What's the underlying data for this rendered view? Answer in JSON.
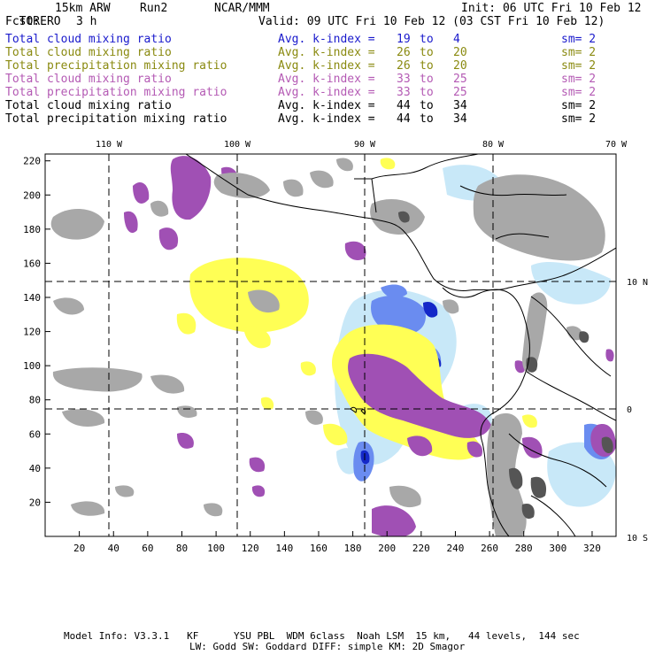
{
  "header": {
    "model": "TORERO",
    "resolution": "15km ARW",
    "run": "Run2",
    "org": "NCAR/MMM",
    "init": "Init: 06 UTC Fri 10 Feb 12",
    "fcst_label": "Fcst:",
    "fcst_value": "3 h",
    "valid": "Valid: 09 UTC Fri 10 Feb 12 (03 CST Fri 10 Feb 12)"
  },
  "legend": [
    {
      "field": "Total cloud mixing ratio",
      "kindex": "Avg. k-index =",
      "from": "19",
      "to_word": "to",
      "to": "4",
      "sm": "sm= 2",
      "color": "#1a1acc"
    },
    {
      "field": "Total cloud mixing ratio",
      "kindex": "Avg. k-index =",
      "from": "26",
      "to_word": "to",
      "to": "20",
      "sm": "sm= 2",
      "color": "#8a8a10"
    },
    {
      "field": "Total precipitation mixing ratio",
      "kindex": "Avg. k-index =",
      "from": "26",
      "to_word": "to",
      "to": "20",
      "sm": "sm= 2",
      "color": "#8a8a10"
    },
    {
      "field": "Total cloud mixing ratio",
      "kindex": "Avg. k-index =",
      "from": "33",
      "to_word": "to",
      "to": "25",
      "sm": "sm= 2",
      "color": "#b45ab4"
    },
    {
      "field": "Total precipitation mixing ratio",
      "kindex": "Avg. k-index =",
      "from": "33",
      "to_word": "to",
      "to": "25",
      "sm": "sm= 2",
      "color": "#b45ab4"
    },
    {
      "field": "Total cloud mixing ratio",
      "kindex": "Avg. k-index =",
      "from": "44",
      "to_word": "to",
      "to": "34",
      "sm": "sm= 2",
      "color": "#000000"
    },
    {
      "field": "Total precipitation mixing ratio",
      "kindex": "Avg. k-index =",
      "from": "44",
      "to_word": "to",
      "to": "34",
      "sm": "sm= 2",
      "color": "#000000"
    }
  ],
  "map": {
    "lon_labels": [
      "110 W",
      "100 W",
      "90 W",
      "80 W",
      "70 W"
    ],
    "lat_labels": [
      "10 N",
      "0",
      "10 S"
    ],
    "x_ticks": [
      "20",
      "40",
      "60",
      "80",
      "100",
      "120",
      "140",
      "160",
      "180",
      "200",
      "220",
      "240",
      "260",
      "280",
      "300",
      "320"
    ],
    "y_ticks": [
      "220",
      "200",
      "180",
      "160",
      "140",
      "120",
      "100",
      "80",
      "60",
      "40",
      "20"
    ],
    "colors": {
      "gray": "#a8a8a8",
      "dark_gray": "#555555",
      "yellow": "#ffff55",
      "purple": "#a050b4",
      "light_blue": "#c8e8f8",
      "mid_blue": "#6a8cf0",
      "dark_blue": "#1428c8",
      "coast": "#000000"
    }
  },
  "footer": {
    "line1": "Model Info: V3.3.1   KF      YSU PBL  WDM 6class  Noah LSM  15 km,   44 levels,  144 sec",
    "line2": "LW: Godd SW: Goddard DIFF: simple KM: 2D Smagor"
  }
}
